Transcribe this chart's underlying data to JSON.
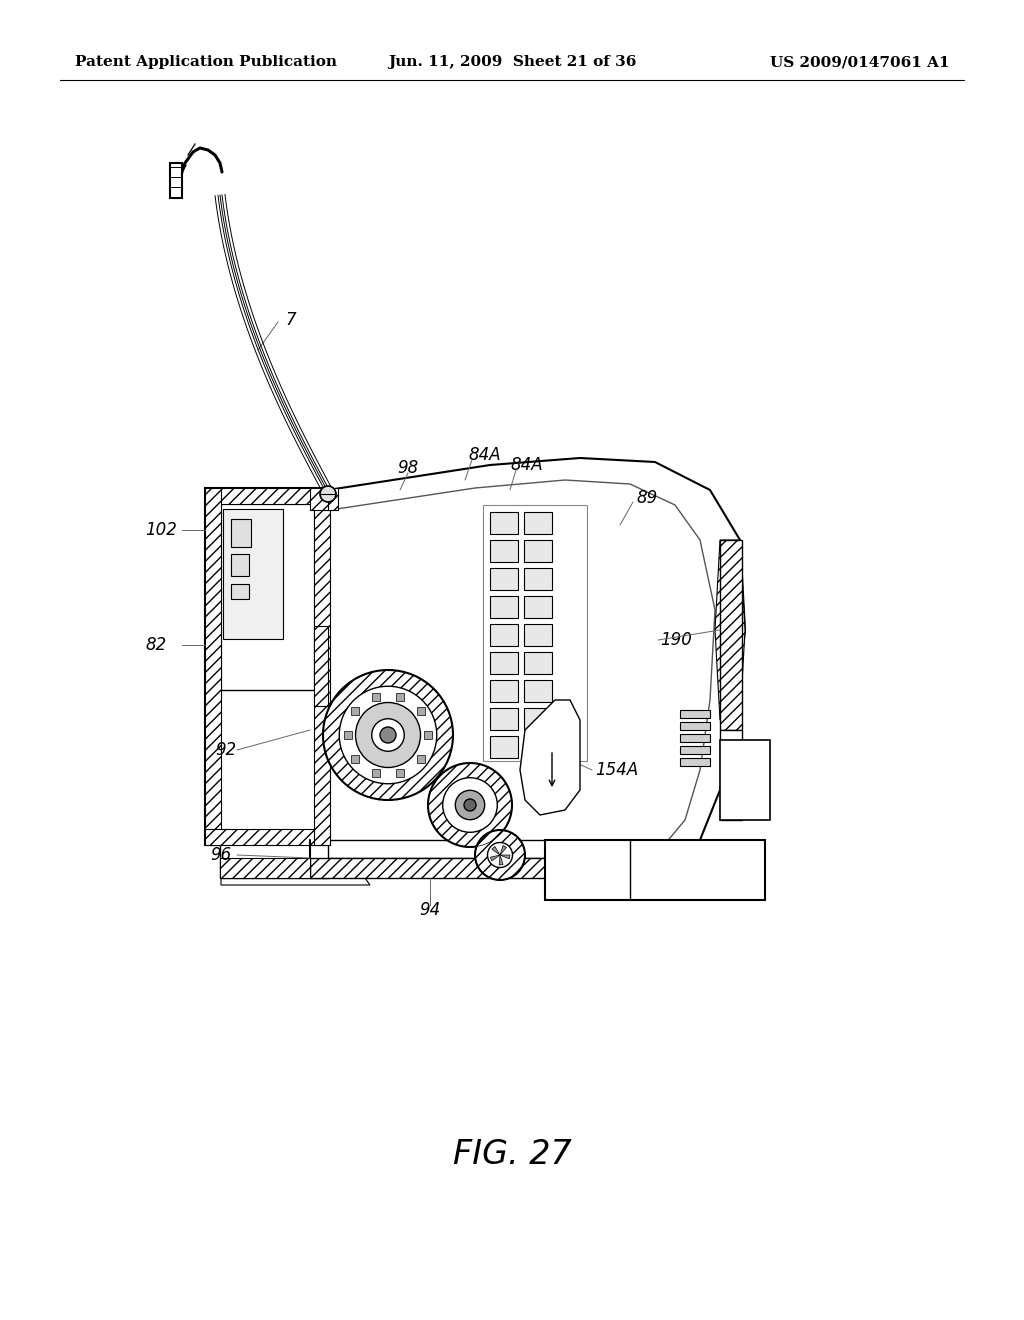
{
  "background_color": "#ffffff",
  "header_left": "Patent Application Publication",
  "header_center": "Jun. 11, 2009  Sheet 21 of 36",
  "header_right": "US 2009/0147061 A1",
  "figure_label": "FIG. 27",
  "header_fontsize": 11,
  "label_fontsize": 12,
  "fig_label_fontsize": 24
}
